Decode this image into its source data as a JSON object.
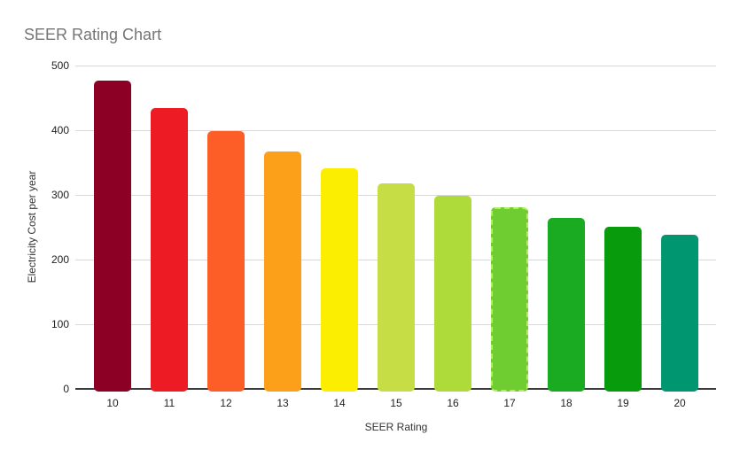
{
  "chart_data": {
    "type": "bar",
    "title": "SEER Rating Chart",
    "xlabel": "SEER Rating",
    "ylabel": "Electricity Cost per year",
    "categories": [
      "10",
      "11",
      "12",
      "13",
      "14",
      "15",
      "16",
      "17",
      "18",
      "19",
      "20"
    ],
    "values": [
      477,
      434,
      398,
      367,
      341,
      318,
      298,
      281,
      265,
      251,
      239
    ],
    "bar_colors": [
      "#8B0024",
      "#ED1C24",
      "#FD5E27",
      "#FDA019",
      "#FBEE00",
      "#C6DD46",
      "#AEDB3A",
      "#6FCC31",
      "#1AAB23",
      "#089C0C",
      "#009670"
    ],
    "highlighted_category": "17",
    "highlight_index": 7,
    "ylim": [
      0,
      500
    ],
    "yticks": [
      0,
      100,
      200,
      300,
      400,
      500
    ],
    "grid": "horizontal",
    "legend": "none"
  },
  "styles": {
    "title_color": "#757575",
    "grid_color": "#D9D9D9",
    "axis_line_color": "#3A3A3A",
    "tick_color": "#222222",
    "highlight_dash_color": "#B5EB66",
    "background": "#FFFFFF"
  }
}
